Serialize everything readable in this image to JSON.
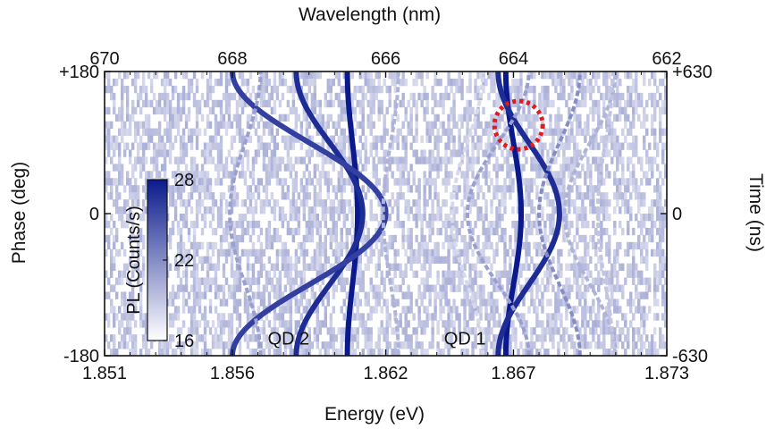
{
  "chart_data": {
    "type": "heatmap",
    "xlabel": "Energy (eV)",
    "x2label": "Wavelength (nm)",
    "ylabel": "Phase (deg)",
    "y2label": "Time (ns)",
    "colorbar_label": "PL (Counts/s)",
    "xlim": [
      1.851,
      1.873
    ],
    "ylim": [
      -180,
      180
    ],
    "xticks": [
      {
        "value": 1.851,
        "label": "1.851"
      },
      {
        "value": 1.856,
        "label": "1.856"
      },
      {
        "value": 1.862,
        "label": "1.862"
      },
      {
        "value": 1.867,
        "label": "1.867"
      },
      {
        "value": 1.873,
        "label": "1.873"
      }
    ],
    "x2ticks": [
      {
        "value": 1.851,
        "label": "670"
      },
      {
        "value": 1.856,
        "label": "668"
      },
      {
        "value": 1.862,
        "label": "666"
      },
      {
        "value": 1.867,
        "label": "664"
      },
      {
        "value": 1.873,
        "label": "662"
      }
    ],
    "yticks": [
      {
        "value": 180,
        "label": "+180"
      },
      {
        "value": 0,
        "label": "0"
      },
      {
        "value": -180,
        "label": "-180"
      }
    ],
    "y2ticks": [
      {
        "value": 180,
        "label": "+630"
      },
      {
        "value": 0,
        "label": "0"
      },
      {
        "value": -180,
        "label": "-630"
      }
    ],
    "colorscale": {
      "min": 16,
      "max": 28,
      "ticks": [
        16,
        22,
        28
      ],
      "low_color": "#ffffff",
      "high_color": "#0a1a8c"
    },
    "annotations": [
      {
        "text": "QD 2",
        "x": 1.8582,
        "y": -158
      },
      {
        "text": "QD 1",
        "x": 1.8651,
        "y": -158
      },
      {
        "text": "",
        "shape": "dotted-circle",
        "color": "#e41a1c",
        "x": 1.8672,
        "y": 112
      }
    ],
    "lines": [
      {
        "group": "QD 2",
        "center": 1.8607,
        "amplitude": 0.0002,
        "intensity": 28
      },
      {
        "group": "QD 2",
        "center": 1.8598,
        "amplitude": 0.0013,
        "intensity": 27
      },
      {
        "group": "QD 2",
        "center": 1.859,
        "amplitude": 0.003,
        "intensity": 26
      },
      {
        "group": "QD 2",
        "center": 1.8565,
        "amplitude": -0.0006,
        "intensity": 21
      },
      {
        "group": "QD 2",
        "center": 1.8622,
        "amplitude": -0.0003,
        "intensity": 20
      },
      {
        "group": "QD 1",
        "center": 1.867,
        "amplitude": 0.0003,
        "intensity": 28
      },
      {
        "group": "QD 1",
        "center": 1.8676,
        "amplitude": 0.0012,
        "intensity": 27
      },
      {
        "group": "QD 1",
        "center": 1.8664,
        "amplitude": -0.0012,
        "intensity": 21
      },
      {
        "group": "QD 1",
        "center": 1.8688,
        "amplitude": -0.0008,
        "intensity": 22
      },
      {
        "group": "QD 1",
        "center": 1.87,
        "amplitude": -0.001,
        "intensity": 20
      },
      {
        "group": "QD 1",
        "center": 1.8706,
        "amplitude": -0.0003,
        "intensity": 19
      },
      {
        "group": "QD 1",
        "center": 1.8652,
        "amplitude": -0.0006,
        "intensity": 18
      }
    ]
  }
}
